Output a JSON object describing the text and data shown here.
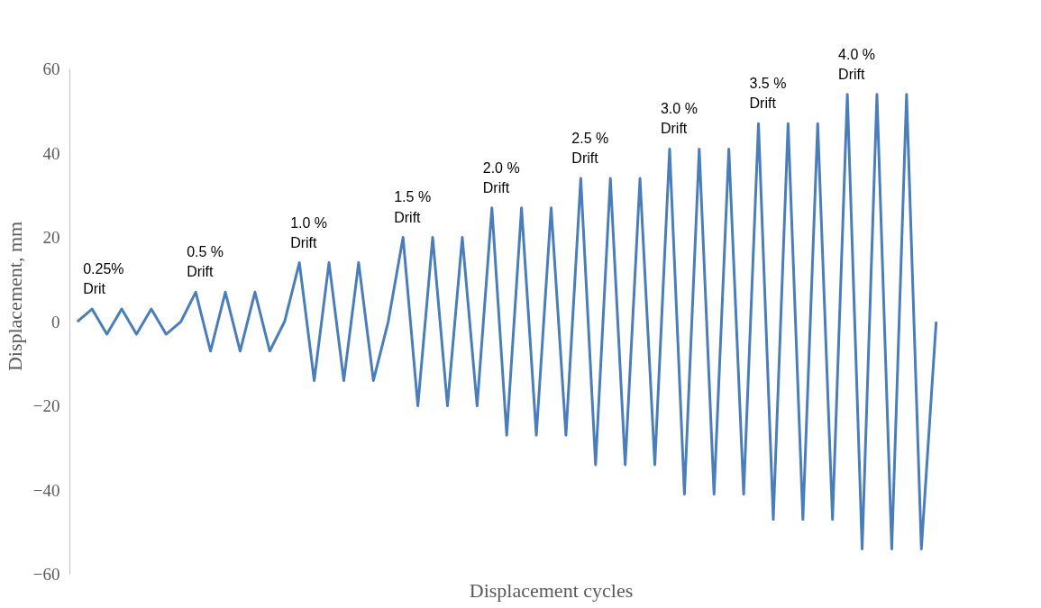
{
  "chart_data": {
    "type": "line",
    "xlabel": "Displacement cycles",
    "ylabel": "Displacement, mm",
    "categories": [
      null,
      null,
      null,
      null,
      null,
      null,
      null,
      null,
      null,
      null,
      null,
      null,
      null,
      null,
      null,
      null,
      null,
      null,
      null,
      null,
      null,
      null,
      null,
      null,
      null,
      null,
      null,
      null,
      null,
      null,
      null,
      null,
      null,
      null,
      null,
      null,
      null,
      null,
      null,
      null,
      null,
      null,
      null,
      null,
      null,
      null,
      null,
      null,
      null,
      null,
      null,
      null,
      null,
      null,
      null,
      null,
      null,
      null,
      null
    ],
    "series": [
      {
        "color": "#4a7ebb",
        "values": [
          0,
          3,
          -3,
          3,
          -3,
          3,
          -3,
          0,
          7,
          -7,
          7,
          -7,
          7,
          -7,
          0,
          14,
          -14,
          14,
          -14,
          14,
          -14,
          0,
          20,
          -20,
          20,
          -20,
          20,
          -20,
          27,
          -27,
          27,
          -27,
          27,
          -27,
          34,
          -34,
          34,
          -34,
          34,
          -34,
          41,
          -41,
          41,
          -41,
          41,
          -41,
          47,
          -47,
          47,
          -47,
          47,
          -47,
          54,
          -54,
          54,
          -54,
          54,
          -54,
          0
        ]
      }
    ],
    "ylim": [
      -60,
      60
    ],
    "yticks": [
      -60,
      -40,
      -20,
      0,
      20,
      40,
      60
    ],
    "annotations": [
      "0.25%\nDrit",
      "0.5 %\nDrift",
      "1.0 %\nDrift",
      "1.5 %\nDrift",
      "2.0 %\nDrift",
      "2.5 %\nDrift",
      "3.0 %\nDrift",
      "3.5 %\nDrift",
      "4.0 %\nDrift"
    ],
    "tick_labels": "y",
    "grid": false,
    "marker": "none",
    "line_style": "solid"
  }
}
